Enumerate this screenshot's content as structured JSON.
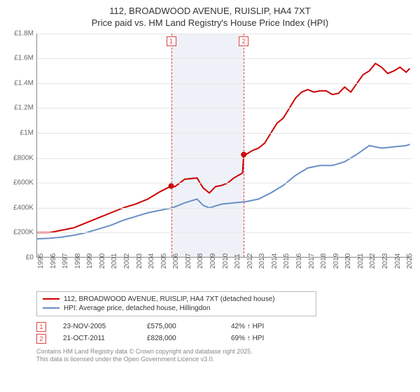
{
  "title_line1": "112, BROADWOOD AVENUE, RUISLIP, HA4 7XT",
  "title_line2": "Price paid vs. HM Land Registry's House Price Index (HPI)",
  "chart": {
    "type": "line",
    "xlim": [
      1995,
      2025.5
    ],
    "ylim": [
      0,
      1800000
    ],
    "ytick_step": 200000,
    "yticks": [
      "£0",
      "£200K",
      "£400K",
      "£600K",
      "£800K",
      "£1M",
      "£1.2M",
      "£1.4M",
      "£1.6M",
      "£1.8M"
    ],
    "xticks": [
      1995,
      1996,
      1997,
      1998,
      1999,
      2000,
      2001,
      2002,
      2003,
      2004,
      2005,
      2006,
      2007,
      2008,
      2009,
      2010,
      2011,
      2012,
      2013,
      2014,
      2015,
      2016,
      2017,
      2018,
      2019,
      2020,
      2021,
      2022,
      2023,
      2024,
      2025
    ],
    "background_color": "#ffffff",
    "grid_color": "#e5e5e5",
    "axis_color": "#888888",
    "band_color": "#eef2f8",
    "band_range": [
      2005.9,
      2011.8
    ],
    "vline_color": "#d44",
    "series": [
      {
        "name": "price_paid",
        "color": "#c00",
        "width": 2,
        "data": [
          [
            1995,
            200000
          ],
          [
            1996,
            200000
          ],
          [
            1997,
            220000
          ],
          [
            1998,
            240000
          ],
          [
            1999,
            280000
          ],
          [
            2000,
            320000
          ],
          [
            2001,
            360000
          ],
          [
            2002,
            400000
          ],
          [
            2003,
            430000
          ],
          [
            2004,
            470000
          ],
          [
            2005,
            530000
          ],
          [
            2005.9,
            575000
          ],
          [
            2006.2,
            570000
          ],
          [
            2007,
            630000
          ],
          [
            2008,
            640000
          ],
          [
            2008.5,
            560000
          ],
          [
            2009,
            520000
          ],
          [
            2009.5,
            570000
          ],
          [
            2010,
            580000
          ],
          [
            2010.5,
            600000
          ],
          [
            2011,
            640000
          ],
          [
            2011.7,
            680000
          ],
          [
            2011.8,
            828000
          ],
          [
            2012,
            830000
          ],
          [
            2012.5,
            860000
          ],
          [
            2013,
            880000
          ],
          [
            2013.5,
            920000
          ],
          [
            2014,
            1000000
          ],
          [
            2014.5,
            1080000
          ],
          [
            2015,
            1120000
          ],
          [
            2015.5,
            1200000
          ],
          [
            2016,
            1280000
          ],
          [
            2016.5,
            1330000
          ],
          [
            2017,
            1350000
          ],
          [
            2017.5,
            1330000
          ],
          [
            2018,
            1340000
          ],
          [
            2018.5,
            1340000
          ],
          [
            2019,
            1310000
          ],
          [
            2019.5,
            1320000
          ],
          [
            2020,
            1370000
          ],
          [
            2020.5,
            1330000
          ],
          [
            2021,
            1400000
          ],
          [
            2021.5,
            1470000
          ],
          [
            2022,
            1500000
          ],
          [
            2022.5,
            1560000
          ],
          [
            2023,
            1530000
          ],
          [
            2023.5,
            1480000
          ],
          [
            2024,
            1500000
          ],
          [
            2024.5,
            1530000
          ],
          [
            2025,
            1490000
          ],
          [
            2025.3,
            1520000
          ]
        ]
      },
      {
        "name": "hpi",
        "color": "#6a8fc7",
        "width": 1.5,
        "data": [
          [
            1995,
            150000
          ],
          [
            1996,
            155000
          ],
          [
            1997,
            165000
          ],
          [
            1998,
            180000
          ],
          [
            1999,
            200000
          ],
          [
            2000,
            230000
          ],
          [
            2001,
            260000
          ],
          [
            2002,
            300000
          ],
          [
            2003,
            330000
          ],
          [
            2004,
            360000
          ],
          [
            2005,
            380000
          ],
          [
            2006,
            400000
          ],
          [
            2007,
            440000
          ],
          [
            2008,
            470000
          ],
          [
            2008.5,
            420000
          ],
          [
            2009,
            400000
          ],
          [
            2010,
            430000
          ],
          [
            2011,
            440000
          ],
          [
            2012,
            450000
          ],
          [
            2013,
            470000
          ],
          [
            2014,
            520000
          ],
          [
            2015,
            580000
          ],
          [
            2016,
            660000
          ],
          [
            2017,
            720000
          ],
          [
            2018,
            740000
          ],
          [
            2019,
            740000
          ],
          [
            2020,
            770000
          ],
          [
            2021,
            830000
          ],
          [
            2022,
            900000
          ],
          [
            2023,
            880000
          ],
          [
            2024,
            890000
          ],
          [
            2025,
            900000
          ],
          [
            2025.3,
            910000
          ]
        ]
      }
    ],
    "markers": [
      {
        "label": "1",
        "x": 2005.9,
        "y": 575000
      },
      {
        "label": "2",
        "x": 2011.8,
        "y": 828000
      }
    ]
  },
  "legend": {
    "items": [
      {
        "color": "#c00",
        "label": "112, BROADWOOD AVENUE, RUISLIP, HA4 7XT (detached house)"
      },
      {
        "color": "#6a8fc7",
        "label": "HPI: Average price, detached house, Hillingdon"
      }
    ]
  },
  "events": [
    {
      "num": "1",
      "date": "23-NOV-2005",
      "price": "£575,000",
      "delta": "42% ↑ HPI"
    },
    {
      "num": "2",
      "date": "21-OCT-2011",
      "price": "£828,000",
      "delta": "69% ↑ HPI"
    }
  ],
  "footer_line1": "Contains HM Land Registry data © Crown copyright and database right 2025.",
  "footer_line2": "This data is licensed under the Open Government Licence v3.0."
}
